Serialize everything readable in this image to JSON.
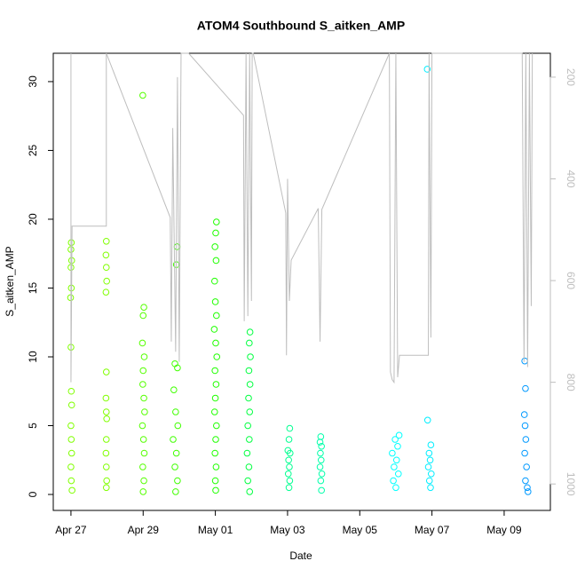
{
  "chart_data": {
    "type": "scatter",
    "title": "ATOM4 Southbound S_aitken_AMP",
    "xlabel": "Date",
    "ylabel": "S_aitken_AMP",
    "xlim": [
      -0.49,
      13.28
    ],
    "xticks": [
      {
        "value": 0,
        "label": "Apr 27"
      },
      {
        "value": 2,
        "label": "Apr 29"
      },
      {
        "value": 4,
        "label": "May 01"
      },
      {
        "value": 6,
        "label": "May 03"
      },
      {
        "value": 8,
        "label": "May 05"
      },
      {
        "value": 10,
        "label": "May 07"
      },
      {
        "value": 12,
        "label": "May 09"
      }
    ],
    "ylim": [
      -1.16,
      32.06
    ],
    "yticks": [
      0,
      5,
      10,
      15,
      20,
      25,
      30
    ],
    "y2lim": [
      1052,
      153
    ],
    "y2ticks": [
      200,
      400,
      600,
      800,
      1000
    ],
    "y2color": "#bebebe",
    "series": [
      {
        "color": "#80ff00",
        "x": [
          0.01,
          0.0,
          0.02,
          0.0,
          0.01,
          -0.01,
          0.0,
          0.01,
          0.02,
          0.0,
          0.01,
          0.02,
          0.0,
          0.01,
          0.03
        ],
        "values": [
          18.3,
          17.8,
          17,
          16.5,
          15,
          14.3,
          10.7,
          7.5,
          6.5,
          5,
          4,
          3,
          2,
          1,
          0.3
        ]
      },
      {
        "color": "#80ff00",
        "x": [
          0.98,
          0.97,
          0.98,
          0.99,
          0.97,
          0.98,
          0.97,
          0.98,
          0.99,
          0.98,
          0.97,
          0.98,
          0.99,
          0.98
        ],
        "values": [
          18.4,
          17.4,
          16.5,
          15.5,
          14.7,
          8.9,
          7,
          6,
          5.5,
          4,
          3,
          2,
          1,
          0.5
        ]
      },
      {
        "color": "#55ff00",
        "x": [
          1.99,
          2.02,
          2.0,
          1.98,
          2.03,
          2.0,
          1.99,
          2.02,
          2.04,
          1.98,
          2.01,
          2.03,
          1.99,
          2.02,
          2.0
        ],
        "values": [
          29,
          13.6,
          13,
          11,
          10,
          9,
          8,
          7,
          6,
          5,
          4,
          3,
          2,
          1,
          0.2
        ]
      },
      {
        "color": "#40ff00",
        "x": [
          2.94,
          2.92,
          2.88,
          2.95,
          2.85,
          2.9,
          2.96,
          2.83,
          2.92,
          2.88,
          2.95,
          2.9
        ],
        "values": [
          18,
          16.7,
          9.5,
          9.2,
          7.6,
          6,
          5,
          4,
          3,
          2,
          1,
          0.2
        ]
      },
      {
        "color": "#20ff00",
        "x": [
          4.03,
          4.01,
          3.99,
          4.02,
          3.98,
          4.0,
          4.03,
          3.97,
          4.01,
          4.04,
          3.99,
          4.02,
          4.0,
          3.98,
          4.03,
          4.01,
          3.99,
          4.02,
          4.0,
          4.01
        ],
        "values": [
          19.8,
          19,
          18,
          17,
          15.5,
          14,
          13,
          12,
          11,
          10,
          9,
          8,
          7,
          6,
          5,
          4,
          3,
          2,
          1,
          0.3
        ]
      },
      {
        "color": "#00ff40",
        "x": [
          4.96,
          4.94,
          4.97,
          4.93,
          4.96,
          4.92,
          4.95,
          4.9,
          4.94,
          4.88,
          4.93,
          4.9,
          4.95
        ],
        "values": [
          11.8,
          11,
          10,
          9,
          8,
          7,
          6,
          5,
          4,
          3,
          2,
          1,
          0.2
        ]
      },
      {
        "color": "#00ff90",
        "x": [
          6.06,
          6.04,
          6.01,
          6.07,
          6.03,
          6.05,
          6.02,
          6.06,
          6.04
        ],
        "values": [
          4.8,
          4,
          3.2,
          3,
          2.5,
          2,
          1.5,
          1,
          0.5
        ]
      },
      {
        "color": "#00ffaa",
        "x": [
          6.92,
          6.9,
          6.94,
          6.91,
          6.93,
          6.9,
          6.95,
          6.92,
          6.94
        ],
        "values": [
          4.2,
          3.8,
          3.5,
          3,
          2.5,
          2,
          1.5,
          1,
          0.3
        ]
      },
      {
        "color": "#00ffff",
        "x": [
          9.09,
          8.98,
          9.05,
          8.9,
          9.02,
          8.95,
          9.07,
          8.93,
          9.0
        ],
        "values": [
          4.3,
          4,
          3.5,
          3,
          2.5,
          2,
          1.5,
          1,
          0.5
        ]
      },
      {
        "color": "#00eeff",
        "x": [
          9.87,
          9.88,
          9.97,
          9.92,
          9.95,
          9.9,
          9.98,
          9.93,
          9.96
        ],
        "values": [
          30.9,
          5.4,
          3.6,
          3,
          2.5,
          2,
          1.5,
          1,
          0.5
        ]
      },
      {
        "color": "#0099ff",
        "x": [
          12.57,
          12.59,
          12.56,
          12.58,
          12.6,
          12.57,
          12.62,
          12.59,
          12.64,
          12.66
        ],
        "values": [
          9.7,
          7.7,
          5.8,
          5,
          4,
          3,
          2,
          1,
          0.5,
          0.2
        ]
      },
      {
        "type": "line",
        "axis": "y2",
        "color": "#bebebe",
        "x": [
          0.0,
          0.0,
          0.03,
          0.03,
          0.98,
          0.98,
          2.75,
          2.78,
          2.82,
          2.9,
          2.95,
          3.0,
          3.05,
          3.26,
          4.78,
          4.8,
          4.85,
          4.9,
          4.95,
          5.0,
          5.02,
          5.05,
          5.95,
          5.97,
          6.0,
          6.05,
          6.1,
          6.85,
          6.9,
          6.95,
          8.82,
          8.85,
          8.9,
          8.95,
          9.0,
          9.05,
          9.1,
          9.9,
          9.92,
          9.97,
          10.0,
          12.5,
          12.55,
          12.6,
          12.65,
          12.7,
          12.75,
          12.78
        ],
        "values": [
          153,
          800,
          500,
          493,
          493,
          153,
          476,
          720,
          300,
          740,
          200,
          760,
          153,
          153,
          275,
          680,
          153,
          670,
          153,
          640,
          153,
          153,
          467,
          747,
          400,
          640,
          560,
          458,
          720,
          460,
          153,
          780,
          795,
          800,
          153,
          790,
          747,
          747,
          153,
          712,
          153,
          153,
          760,
          153,
          770,
          153,
          650,
          153
        ]
      }
    ]
  }
}
